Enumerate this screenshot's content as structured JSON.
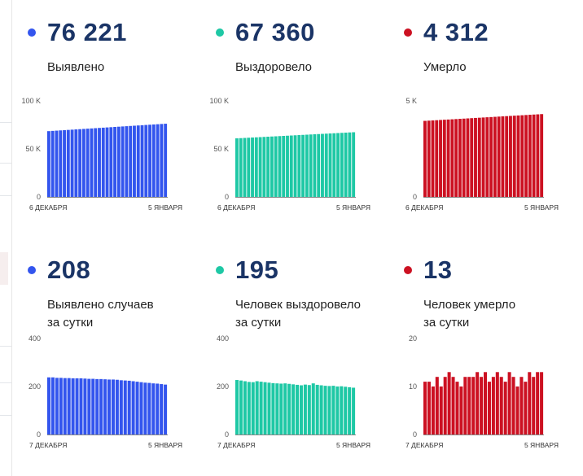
{
  "colors": {
    "detected": "#3355ee",
    "recovered": "#1ec8a5",
    "died": "#cc1122",
    "value_text": "#1a3466"
  },
  "cards": [
    {
      "value": "76 221",
      "label": "Выявлено",
      "dot_color": "#3355ee"
    },
    {
      "value": "67 360",
      "label": "Выздоровело",
      "dot_color": "#1ec8a5"
    },
    {
      "value": "4 312",
      "label": "Умерло",
      "dot_color": "#cc1122"
    },
    {
      "value": "208",
      "label": "Выявлено случаев\nза сутки",
      "dot_color": "#3355ee"
    },
    {
      "value": "195",
      "label": "Человек выздоровело\nза сутки",
      "dot_color": "#1ec8a5"
    },
    {
      "value": "13",
      "label": "Человек умерло\nза сутки",
      "dot_color": "#cc1122"
    }
  ],
  "chart_data": [
    {
      "type": "bar",
      "color": "#3355ee",
      "ylim": [
        0,
        100000
      ],
      "yticks": [
        0,
        50000,
        100000
      ],
      "ytick_labels": [
        "0",
        "50 K",
        "100 K"
      ],
      "x_start_label": "6 ДЕКАБРЯ",
      "x_end_label": "5 ЯНВАРЯ",
      "start": 68500,
      "end": 76221,
      "values": []
    },
    {
      "type": "bar",
      "color": "#1ec8a5",
      "ylim": [
        0,
        100000
      ],
      "yticks": [
        0,
        50000,
        100000
      ],
      "ytick_labels": [
        "0",
        "50 K",
        "100 K"
      ],
      "x_start_label": "6 ДЕКАБРЯ",
      "x_end_label": "5 ЯНВАРЯ",
      "start": 61000,
      "end": 67360,
      "values": []
    },
    {
      "type": "bar",
      "color": "#cc1122",
      "ylim": [
        0,
        5000
      ],
      "yticks": [
        0,
        5000
      ],
      "ytick_labels": [
        "0",
        "5 K"
      ],
      "x_start_label": "6 ДЕКАБРЯ",
      "x_end_label": "5 ЯНВАРЯ",
      "start": 3960,
      "end": 4312,
      "values": []
    },
    {
      "type": "bar",
      "color": "#3355ee",
      "ylim": [
        0,
        400
      ],
      "yticks": [
        0,
        200,
        400
      ],
      "ytick_labels": [
        "0",
        "200",
        "400"
      ],
      "x_start_label": "7 ДЕКАБРЯ",
      "x_end_label": "5 ЯНВАРЯ",
      "values": [
        238,
        238,
        236,
        236,
        235,
        235,
        234,
        234,
        234,
        233,
        232,
        232,
        231,
        231,
        230,
        229,
        229,
        228,
        226,
        225,
        224,
        222,
        220,
        218,
        216,
        215,
        213,
        212,
        210,
        208
      ]
    },
    {
      "type": "bar",
      "color": "#1ec8a5",
      "ylim": [
        0,
        400
      ],
      "yticks": [
        0,
        200,
        400
      ],
      "ytick_labels": [
        "0",
        "200",
        "400"
      ],
      "x_start_label": "7 ДЕКАБРЯ",
      "x_end_label": "5 ЯНВАРЯ",
      "values": [
        227,
        225,
        222,
        219,
        218,
        222,
        220,
        218,
        216,
        214,
        213,
        212,
        213,
        211,
        209,
        207,
        205,
        208,
        206,
        213,
        207,
        205,
        203,
        202,
        203,
        200,
        201,
        199,
        197,
        195
      ]
    },
    {
      "type": "bar",
      "color": "#cc1122",
      "ylim": [
        0,
        20
      ],
      "yticks": [
        0,
        10,
        20
      ],
      "ytick_labels": [
        "0",
        "10",
        "20"
      ],
      "x_start_label": "7 ДЕКАБРЯ",
      "x_end_label": "5 ЯНВАРЯ",
      "values": [
        11,
        11,
        10,
        12,
        10,
        12,
        13,
        12,
        11,
        10,
        12,
        12,
        12,
        13,
        12,
        13,
        11,
        12,
        13,
        12,
        11,
        13,
        12,
        10,
        12,
        11,
        13,
        12,
        13,
        13
      ]
    }
  ]
}
